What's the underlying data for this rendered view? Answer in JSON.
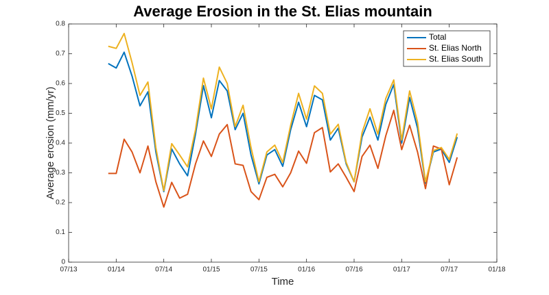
{
  "chart_data": {
    "type": "line",
    "title": "Average Erosion in the St. Elias mountain",
    "x_label": "Time",
    "y_label": "Average erosion (mm/yr)",
    "x": [
      "12/13",
      "01/14",
      "02/14",
      "03/14",
      "04/14",
      "05/14",
      "06/14",
      "07/14",
      "08/14",
      "09/14",
      "10/14",
      "11/14",
      "12/14",
      "01/15",
      "02/15",
      "03/15",
      "04/15",
      "05/15",
      "06/15",
      "07/15",
      "08/15",
      "09/15",
      "10/15",
      "11/15",
      "12/15",
      "01/16",
      "02/16",
      "03/16",
      "04/16",
      "05/16",
      "06/16",
      "07/16",
      "08/16",
      "09/16",
      "10/16",
      "11/16",
      "12/16",
      "01/17",
      "02/17",
      "03/17",
      "04/17",
      "05/17",
      "06/17",
      "07/17",
      "08/17"
    ],
    "series": [
      {
        "name": "Total",
        "color": "#0072bd",
        "values": [
          0.667,
          0.652,
          0.705,
          0.625,
          0.525,
          0.572,
          0.37,
          0.237,
          0.38,
          0.33,
          0.29,
          0.43,
          0.593,
          0.485,
          0.61,
          0.575,
          0.445,
          0.5,
          0.36,
          0.263,
          0.36,
          0.378,
          0.322,
          0.445,
          0.537,
          0.455,
          0.56,
          0.545,
          0.41,
          0.45,
          0.33,
          0.27,
          0.42,
          0.487,
          0.41,
          0.53,
          0.597,
          0.4,
          0.553,
          0.45,
          0.265,
          0.37,
          0.38,
          0.335,
          0.42
        ]
      },
      {
        "name": "St. Elias North",
        "color": "#d95319",
        "values": [
          0.298,
          0.298,
          0.413,
          0.37,
          0.3,
          0.39,
          0.27,
          0.185,
          0.268,
          0.215,
          0.228,
          0.33,
          0.407,
          0.355,
          0.43,
          0.462,
          0.33,
          0.325,
          0.237,
          0.21,
          0.285,
          0.295,
          0.253,
          0.3,
          0.373,
          0.332,
          0.435,
          0.452,
          0.303,
          0.33,
          0.285,
          0.237,
          0.355,
          0.393,
          0.315,
          0.425,
          0.51,
          0.378,
          0.46,
          0.37,
          0.247,
          0.39,
          0.38,
          0.26,
          0.352
        ]
      },
      {
        "name": "St. Elias South",
        "color": "#edb120",
        "values": [
          0.725,
          0.718,
          0.768,
          0.67,
          0.56,
          0.605,
          0.385,
          0.24,
          0.398,
          0.36,
          0.32,
          0.445,
          0.618,
          0.515,
          0.655,
          0.6,
          0.455,
          0.527,
          0.385,
          0.27,
          0.37,
          0.393,
          0.335,
          0.46,
          0.567,
          0.48,
          0.592,
          0.567,
          0.43,
          0.463,
          0.335,
          0.27,
          0.435,
          0.515,
          0.43,
          0.55,
          0.612,
          0.41,
          0.575,
          0.47,
          0.27,
          0.375,
          0.385,
          0.345,
          0.432
        ]
      }
    ],
    "xlim": [
      "07/13",
      "01/18"
    ],
    "xticks": [
      "07/13",
      "01/14",
      "07/14",
      "01/15",
      "07/15",
      "01/16",
      "07/16",
      "01/17",
      "07/17",
      "01/18"
    ],
    "ylim": [
      0,
      0.8
    ],
    "yticks": [
      0,
      0.1,
      0.2,
      0.3,
      0.4,
      0.5,
      0.6,
      0.7,
      0.8
    ],
    "legend": "upper right"
  }
}
